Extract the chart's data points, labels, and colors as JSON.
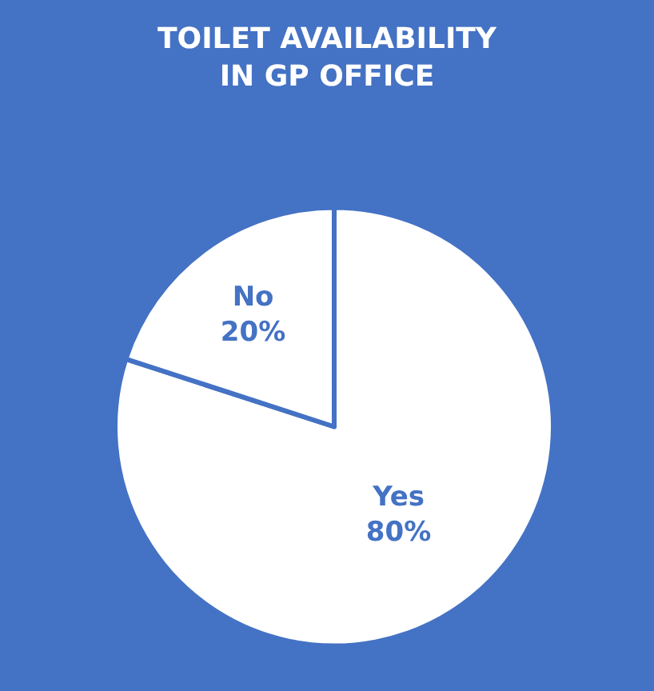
{
  "chart_data": {
    "type": "pie",
    "title": "TOILET AVAILABILITY\nIN GP OFFICE",
    "categories": [
      "Yes",
      "No"
    ],
    "values": [
      80,
      20
    ],
    "value_labels": [
      "80%",
      "20%"
    ],
    "colors": [
      "#ffffff",
      "#ffffff"
    ]
  }
}
